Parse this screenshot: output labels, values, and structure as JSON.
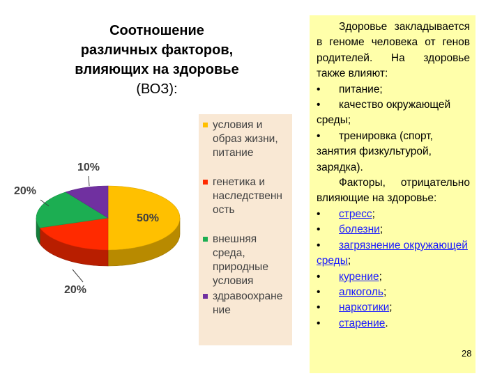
{
  "title": {
    "line1": "Соотношение",
    "line2": "различных факторов,",
    "line3": "влияющих на здоровье",
    "line4": "(ВОЗ):"
  },
  "chart_data": {
    "type": "pie",
    "slices": [
      {
        "label": "условия и образ жизни, питание",
        "value": 50,
        "display": "50%",
        "color": "#ffc000"
      },
      {
        "label": "генетика и наследственность",
        "value": 20,
        "display": "20%",
        "color": "#ff2a00"
      },
      {
        "label": "внешняя среда, природные условия",
        "value": 20,
        "display": "20%",
        "color": "#1cae52"
      },
      {
        "label": "здравоохранение",
        "value": 10,
        "display": "10%",
        "color": "#7030a0"
      }
    ],
    "legend_lines": [
      "условия и\nобраз жизни,\nпитание",
      "генетика и\nнаследственн\nость",
      "внешняя\nсреда,\nприродные\nусловия",
      "здравоохране\nние"
    ],
    "legend_placement": "right"
  },
  "note": {
    "p1": "Здоровье закладывается в геноме человека от генов родителей. На здоровье также влияют:",
    "bullet_symbol": "•",
    "good": [
      "питание;",
      "качество окружающей среды;",
      "тренировка (спорт, занятия физкультурой, зарядка)."
    ],
    "p2": "Факторы, отрицательно влияющие на здоровье:",
    "bad": [
      {
        "link": "стресс",
        "tail": ";"
      },
      {
        "link": "болезни",
        "tail": ";"
      },
      {
        "link": "загрязнение окружающей среды",
        "tail": ";"
      },
      {
        "link": "курение",
        "tail": ";"
      },
      {
        "link": "алкоголь",
        "tail": ";"
      },
      {
        "link": "наркотики",
        "tail": ";"
      },
      {
        "link": "старение",
        "tail": "."
      }
    ]
  },
  "page_number": "28"
}
